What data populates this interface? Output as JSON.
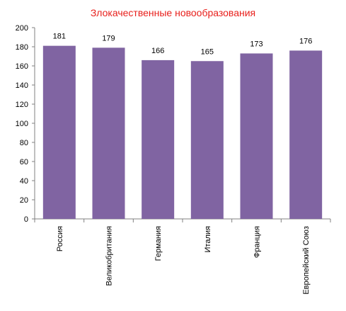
{
  "chart_data": {
    "type": "bar",
    "title": "Злокачественные новообразования",
    "categories": [
      "Россия",
      "Великобритания",
      "Германия",
      "Италия",
      "Франция",
      "Европейский Союз"
    ],
    "values": [
      181,
      179,
      166,
      165,
      173,
      176
    ],
    "data_labels": [
      "181",
      "179",
      "166",
      "165",
      "173",
      "176"
    ],
    "ylim": [
      0,
      200
    ],
    "yticks": [
      0,
      20,
      40,
      60,
      80,
      100,
      120,
      140,
      160,
      180,
      200
    ],
    "ytick_labels": [
      "0",
      "20",
      "40",
      "60",
      "80",
      "100",
      "120",
      "140",
      "160",
      "180",
      "200"
    ],
    "xlabel": "",
    "ylabel": "",
    "grid": false,
    "legend": "none",
    "colors": {
      "bar": "#8064a2",
      "title": "#e8201c",
      "axis": "#808080"
    }
  }
}
